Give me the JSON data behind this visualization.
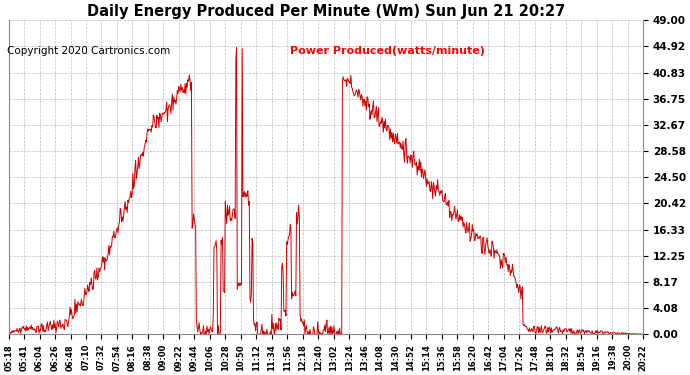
{
  "title": "Daily Energy Produced Per Minute (Wm) Sun Jun 21 20:27",
  "copyright": "Copyright 2020 Cartronics.com",
  "legend_label": "Power Produced(watts/minute)",
  "y_max": 49.0,
  "y_min": 0.0,
  "y_ticks": [
    0.0,
    4.08,
    8.17,
    12.25,
    16.33,
    20.42,
    24.5,
    28.58,
    32.67,
    36.75,
    40.83,
    44.92,
    49.0
  ],
  "background_color": "#ffffff",
  "line_color": "#cc0000",
  "grid_color": "#bbbbbb",
  "title_color": "#000000",
  "copyright_color": "#000000",
  "legend_color": "#ff0000",
  "x_tick_labels": [
    "05:18",
    "05:41",
    "06:04",
    "06:26",
    "06:48",
    "07:10",
    "07:32",
    "07:54",
    "08:16",
    "08:38",
    "09:00",
    "09:22",
    "09:44",
    "10:06",
    "10:28",
    "10:50",
    "11:12",
    "11:34",
    "11:56",
    "12:18",
    "12:40",
    "13:02",
    "13:24",
    "13:46",
    "14:08",
    "14:30",
    "14:52",
    "15:14",
    "15:36",
    "15:58",
    "16:20",
    "16:42",
    "17:04",
    "17:26",
    "17:48",
    "18:10",
    "18:32",
    "18:54",
    "19:16",
    "19:38",
    "20:00",
    "20:22"
  ]
}
